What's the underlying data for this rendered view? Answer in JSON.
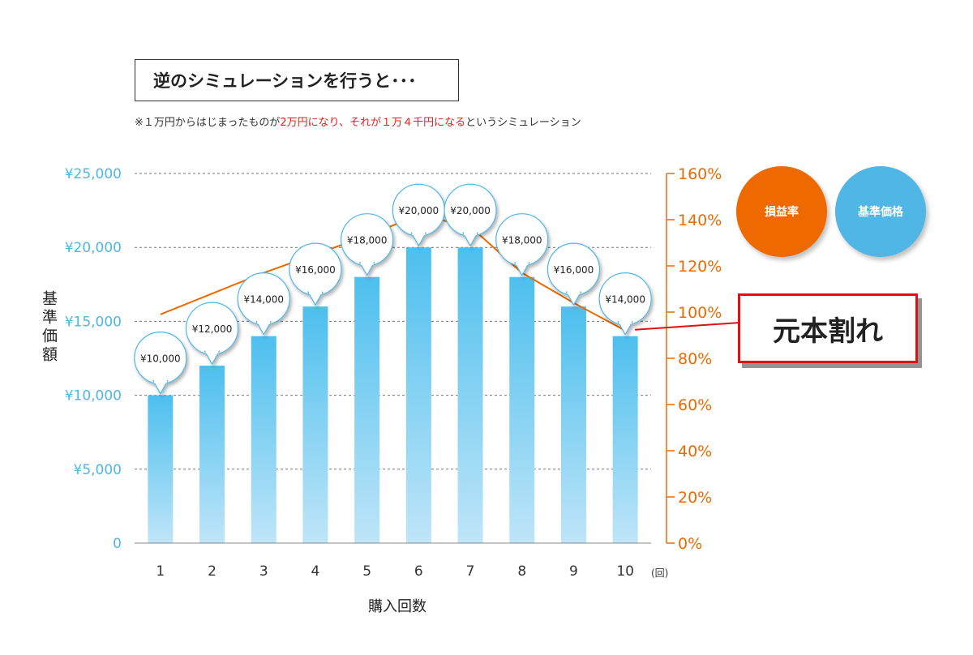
{
  "header": {
    "title": "逆のシミュレーションを行うと･･･",
    "note_pre": "※１万円からはじまったものが",
    "note_red": "2万円になり、それが１万４千円になる",
    "note_post": "というシミュレーション"
  },
  "legend": {
    "loss_ratio": "損益率",
    "base_price": "基準価格"
  },
  "callout": {
    "text": "元本割れ"
  },
  "colors": {
    "bar_top": "#4dbfee",
    "bar_bottom": "#bfe5f8",
    "line": "#ee6a00",
    "left_axis": "#4fb6e6",
    "right_axis": "#ee6a00",
    "callout_border": "#e01010"
  },
  "chart_data": {
    "type": "bar",
    "categories": [
      "1",
      "2",
      "3",
      "4",
      "5",
      "6",
      "7",
      "8",
      "9",
      "10"
    ],
    "xlabel": "購入回数",
    "xunit": "(回)",
    "ylabel": "基準価額",
    "ylim": [
      0,
      25000
    ],
    "y_ticks": [
      "0",
      "¥5,000",
      "¥10,000",
      "¥15,000",
      "¥20,000",
      "¥25,000"
    ],
    "y_tick_values": [
      0,
      5000,
      10000,
      15000,
      20000,
      25000
    ],
    "y2lim": [
      0,
      160
    ],
    "y2_ticks": [
      "0%",
      "20%",
      "40%",
      "60%",
      "80%",
      "100%",
      "120%",
      "140%",
      "160%"
    ],
    "y2_tick_values": [
      0,
      20,
      40,
      60,
      80,
      100,
      120,
      140,
      160
    ],
    "series": [
      {
        "name": "基準価格",
        "type": "bar",
        "values": [
          10000,
          12000,
          14000,
          16000,
          18000,
          20000,
          20000,
          18000,
          16000,
          14000
        ],
        "labels": [
          "¥10,000",
          "¥12,000",
          "¥14,000",
          "¥16,000",
          "¥18,000",
          "¥20,000",
          "¥20,000",
          "¥18,000",
          "¥16,000",
          "¥14,000"
        ]
      },
      {
        "name": "損益率",
        "type": "line",
        "axis": "right",
        "values": [
          99,
          108,
          117,
          125,
          133,
          142,
          137,
          117,
          104,
          92
        ]
      }
    ],
    "grid": true
  }
}
